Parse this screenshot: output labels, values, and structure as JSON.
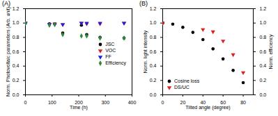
{
  "chart_data": [
    {
      "type": "scatter",
      "title": "(A)",
      "x_label": "Time (h)",
      "y_label": "Norm. Photovoltaic parameters (Arb. unit)",
      "x": [
        0,
        90,
        110,
        140,
        210,
        230,
        280,
        370
      ],
      "series": [
        {
          "name": "JSC",
          "color": "#000000",
          "marker": "circle",
          "values": [
            1.0,
            0.99,
            0.99,
            0.86,
            0.97,
            0.84,
            0.8,
            0.79
          ]
        },
        {
          "name": "VOC",
          "color": "#e0201b",
          "marker": "triangle-down",
          "values": [
            1.0,
            0.98,
            0.99,
            0.98,
            1.0,
            0.99,
            0.99,
            1.0
          ]
        },
        {
          "name": "FF",
          "color": "#1f1fe0",
          "marker": "triangle-down",
          "values": [
            1.0,
            0.98,
            0.98,
            0.98,
            1.0,
            1.0,
            1.0,
            1.0
          ]
        },
        {
          "name": "Efficiency",
          "color": "#2e8b3d",
          "marker": "diamond",
          "values": [
            1.0,
            0.97,
            0.98,
            0.84,
            0.82,
            0.82,
            0.79,
            0.79
          ]
        }
      ],
      "xlim": [
        0,
        400
      ],
      "xticks": [
        0,
        100,
        200,
        300,
        400
      ],
      "ylim": [
        0,
        1.2
      ],
      "yticks": [
        {
          "value": 0,
          "label": "0.0"
        },
        0.2,
        0.4,
        0.6,
        0.8,
        {
          "value": 1,
          "label": "1.0"
        },
        1.2
      ],
      "legend": "right"
    },
    {
      "type": "scatter",
      "title": "(B)",
      "x_label": "Tilted angle (degree)",
      "y_label": "Norm. light intensity",
      "y2_label": "Norm. efficiency",
      "x": [
        0,
        10,
        20,
        30,
        40,
        50,
        60,
        70,
        80
      ],
      "series": [
        {
          "name": "Cosine loss",
          "color": "#000000",
          "marker": "circle",
          "values": [
            1.0,
            0.985,
            0.94,
            0.87,
            0.77,
            0.64,
            0.5,
            0.34,
            0.17
          ]
        },
        {
          "name": "DS/UC",
          "color": "#e0201b",
          "marker": "triangle-down",
          "axis": "y2",
          "values": [
            1.0,
            null,
            null,
            null,
            0.91,
            0.88,
            0.75,
            0.56,
            0.31
          ]
        }
      ],
      "xlim": [
        0,
        90
      ],
      "xticks": [
        0,
        20,
        40,
        60,
        80
      ],
      "ylim": [
        0,
        1.2
      ],
      "yticks": [
        {
          "value": 0,
          "label": "0.0"
        },
        0.2,
        0.4,
        0.6,
        0.8,
        {
          "value": 1,
          "label": "1.0"
        },
        1.2
      ],
      "y2lim": [
        0,
        1.2
      ],
      "y2ticks": [
        {
          "value": 0,
          "label": "0.0"
        },
        0.2,
        0.4,
        0.6,
        0.8,
        {
          "value": 1,
          "label": "1.0"
        },
        1.2
      ],
      "legend": "lower left"
    }
  ]
}
